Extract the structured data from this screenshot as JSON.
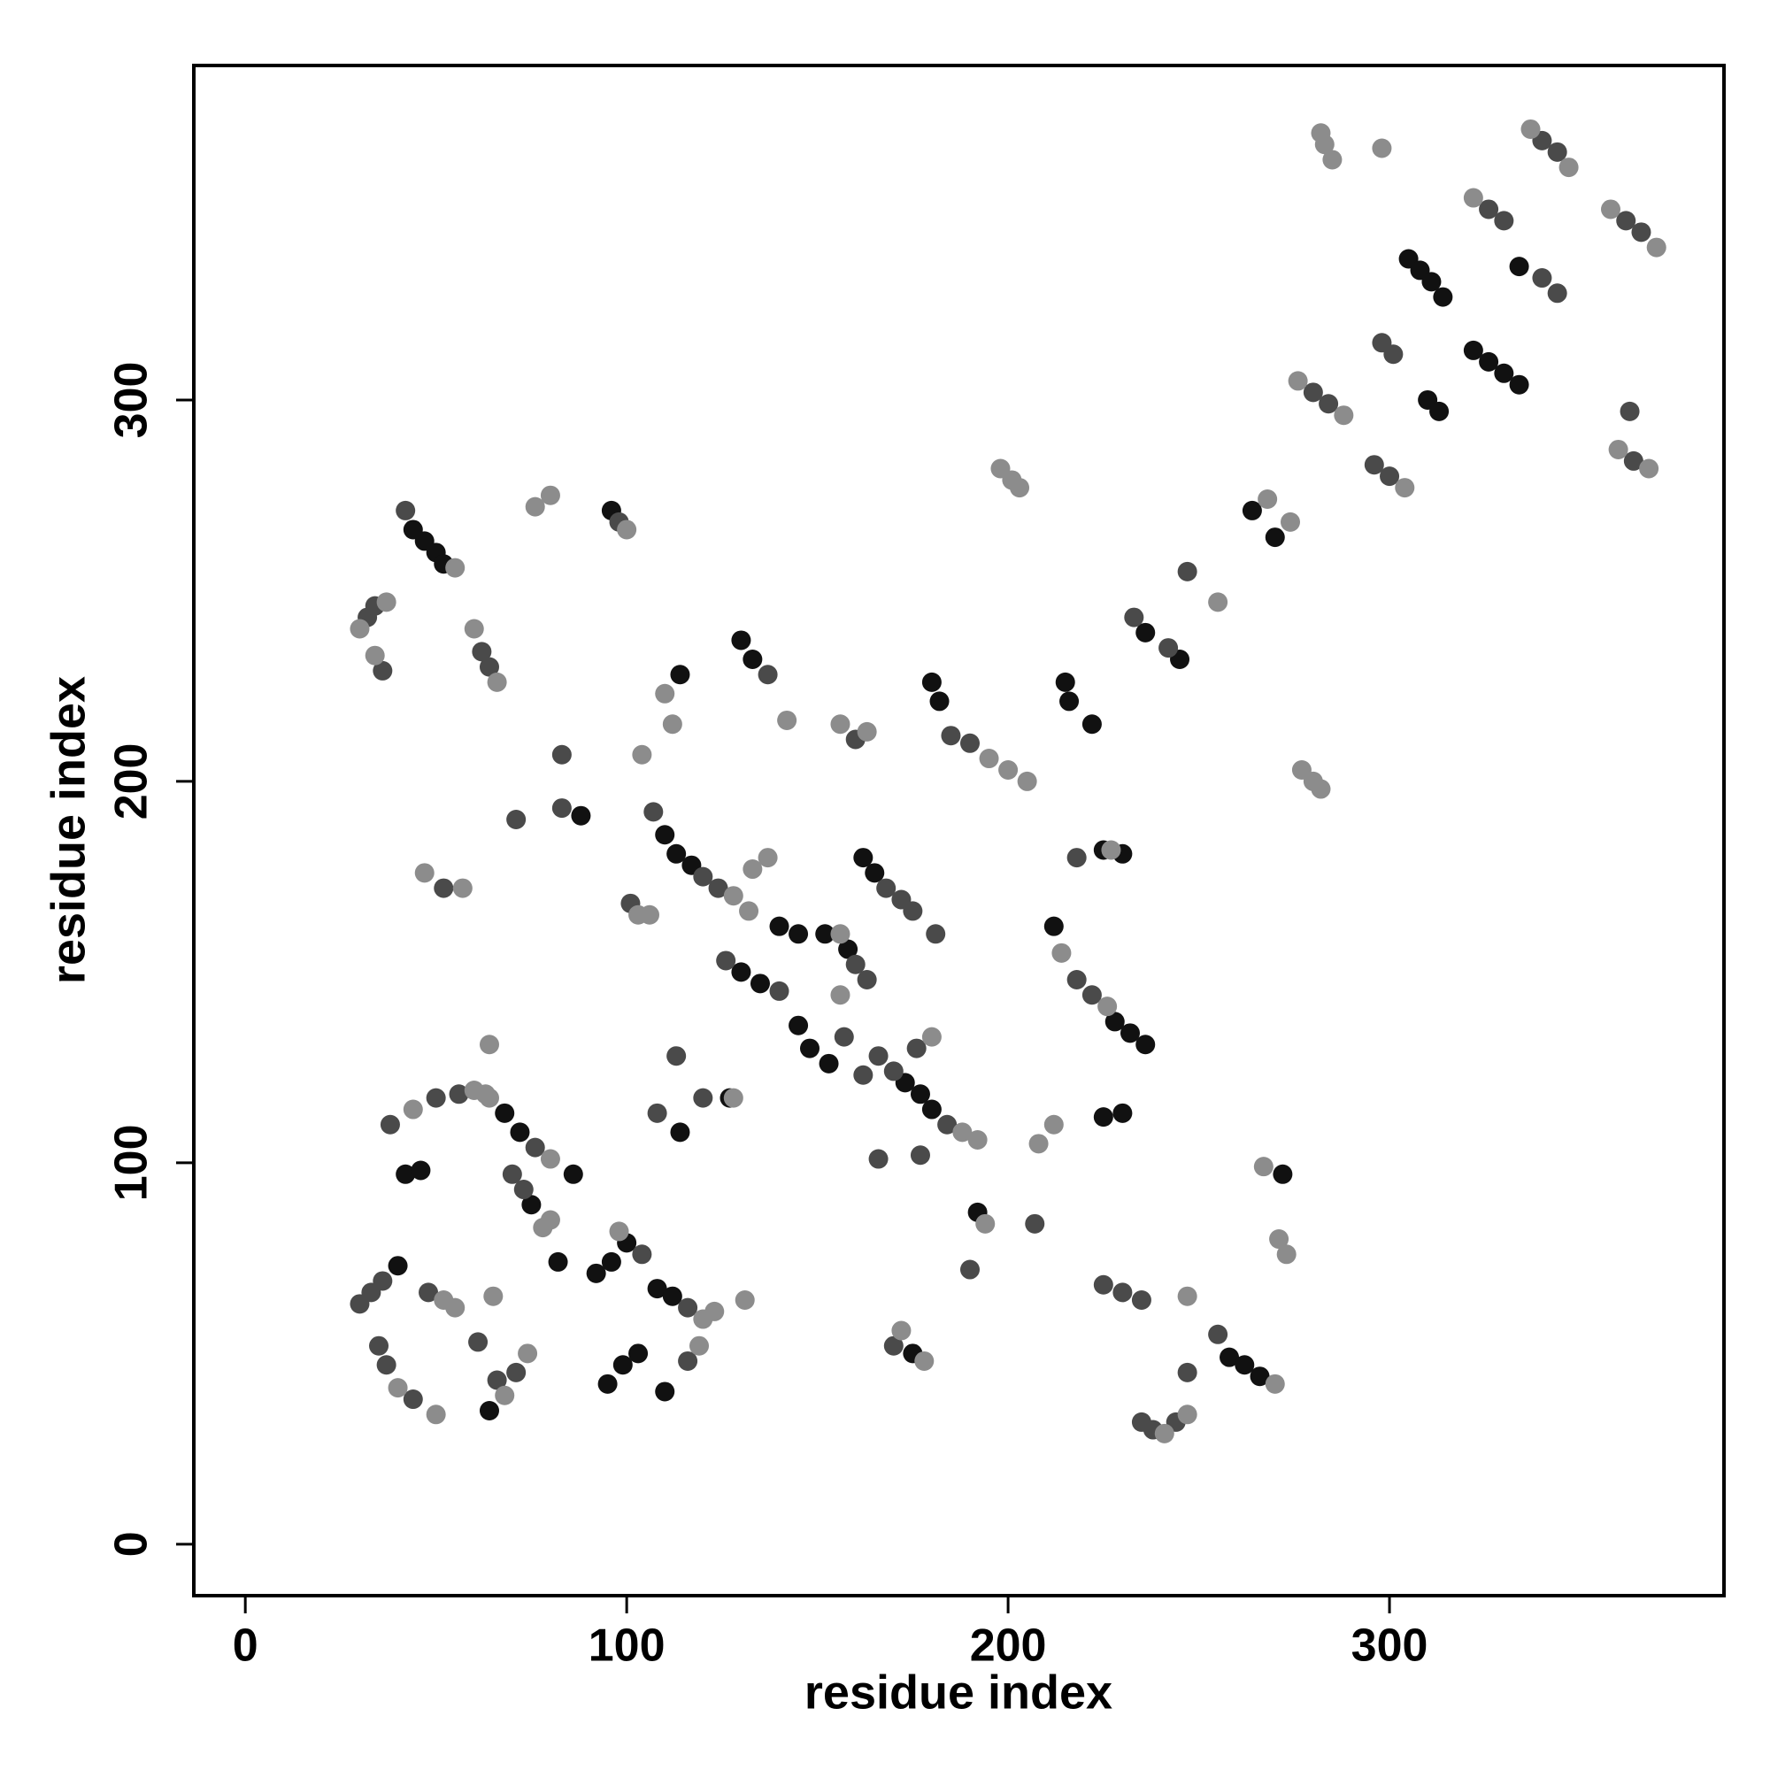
{
  "chart_data": {
    "type": "scatter",
    "xlabel": "residue index",
    "ylabel": "residue index",
    "xlim": [
      -13.5,
      387.7
    ],
    "ylim": [
      -13.5,
      387.7
    ],
    "xticks": [
      0,
      100,
      200,
      300
    ],
    "yticks": [
      0,
      100,
      200,
      300
    ],
    "grid": false,
    "series": [
      {
        "color": "#111111",
        "x": [
          305,
          308,
          311,
          314,
          322,
          326,
          330,
          334,
          310,
          313,
          264,
          270,
          44,
          47,
          50,
          52,
          96,
          88,
          180,
          182,
          215,
          216,
          222,
          225,
          230,
          110,
          113,
          117,
          140,
          145,
          152,
          158,
          130,
          135,
          145,
          148,
          153,
          162,
          165,
          173,
          177,
          180,
          212,
          228,
          232,
          236,
          225,
          230,
          192,
          258,
          262,
          266,
          272,
          175,
          42,
          46,
          68,
          72,
          75,
          86,
          82,
          92,
          96,
          100,
          108,
          112,
          95,
          99,
          103,
          110,
          114,
          127,
          64,
          40,
          133,
          130,
          114,
          236,
          245,
          334
        ],
        "values": [
          337,
          334,
          331,
          327,
          313,
          310,
          307,
          304,
          300,
          297,
          271,
          264,
          266,
          263,
          260,
          257,
          271,
          191,
          226,
          221,
          226,
          221,
          215,
          182,
          181,
          186,
          181,
          178,
          162,
          160,
          160,
          156,
          150,
          147,
          136,
          130,
          126,
          180,
          176,
          121,
          118,
          114,
          162,
          137,
          134,
          131,
          112,
          113,
          87,
          49,
          47,
          44,
          97,
          50,
          97,
          98,
          113,
          108,
          89,
          97,
          74,
          71,
          74,
          79,
          67,
          65,
          42,
          47,
          50,
          40,
          108,
          117,
          35,
          73,
          232,
          237,
          228,
          239,
          232,
          335
        ]
      },
      {
        "color": "#4a4a4a",
        "x": [
          340,
          344,
          326,
          330,
          362,
          366,
          340,
          344,
          298,
          301,
          280,
          284,
          296,
          300,
          364,
          363,
          233,
          242,
          247,
          32,
          34,
          36,
          62,
          64,
          42,
          98,
          71,
          83,
          83,
          52,
          137,
          160,
          185,
          190,
          218,
          107,
          120,
          124,
          101,
          126,
          140,
          157,
          162,
          168,
          172,
          175,
          181,
          160,
          163,
          166,
          170,
          184,
          176,
          177,
          166,
          218,
          222,
          190,
          207,
          120,
          113,
          108,
          225,
          230,
          235,
          235,
          238,
          244,
          255,
          247,
          170,
          30,
          33,
          36,
          48,
          35,
          37,
          44,
          61,
          66,
          50,
          56,
          76,
          70,
          73,
          104,
          116,
          71,
          116,
          38
        ],
        "values": [
          368,
          365,
          350,
          347,
          347,
          344,
          332,
          328,
          315,
          312,
          302,
          299,
          283,
          280,
          284,
          297,
          243,
          235,
          255,
          243,
          246,
          229,
          234,
          230,
          271,
          268,
          190,
          193,
          207,
          172,
          228,
          211,
          212,
          210,
          180,
          192,
          175,
          172,
          168,
          153,
          145,
          133,
          123,
          172,
          169,
          166,
          160,
          152,
          148,
          128,
          124,
          110,
          130,
          102,
          101,
          148,
          144,
          72,
          84,
          117,
          128,
          113,
          68,
          66,
          64,
          32,
          30,
          32,
          55,
          45,
          52,
          63,
          66,
          69,
          66,
          52,
          47,
          38,
          53,
          43,
          117,
          118,
          104,
          97,
          93,
          76,
          62,
          45,
          48,
          110
        ]
      },
      {
        "color": "#8c8c8c",
        "x": [
          282,
          283,
          285,
          298,
          337,
          347,
          322,
          358,
          370,
          276,
          288,
          304,
          360,
          368,
          198,
          201,
          203,
          268,
          274,
          255,
          277,
          280,
          282,
          30,
          37,
          34,
          55,
          66,
          60,
          76,
          80,
          100,
          47,
          57,
          104,
          112,
          142,
          156,
          163,
          195,
          200,
          205,
          103,
          106,
          133,
          137,
          128,
          132,
          156,
          188,
          192,
          180,
          214,
          226,
          208,
          194,
          128,
          131,
          64,
          241,
          247,
          247,
          267,
          271,
          273,
          172,
          178,
          52,
          55,
          40,
          50,
          68,
          65,
          44,
          60,
          63,
          80,
          78,
          80,
          98,
          120,
          123,
          119,
          74,
          64,
          212,
          227,
          110,
          156,
          270
        ],
        "values": [
          370,
          367,
          363,
          366,
          371,
          361,
          353,
          350,
          340,
          305,
          296,
          277,
          287,
          282,
          282,
          279,
          277,
          274,
          268,
          247,
          203,
          200,
          198,
          240,
          247,
          233,
          256,
          226,
          240,
          272,
          275,
          266,
          176,
          172,
          207,
          215,
          216,
          215,
          213,
          206,
          203,
          200,
          165,
          165,
          177,
          180,
          170,
          166,
          144,
          108,
          106,
          133,
          155,
          141,
          105,
          84,
          117,
          64,
          131,
          29,
          34,
          65,
          99,
          80,
          76,
          56,
          48,
          64,
          62,
          41,
          34,
          39,
          65,
          114,
          119,
          118,
          101,
          83,
          85,
          82,
          59,
          61,
          52,
          50,
          117,
          110,
          182,
          223,
          160,
          42
        ]
      }
    ]
  }
}
